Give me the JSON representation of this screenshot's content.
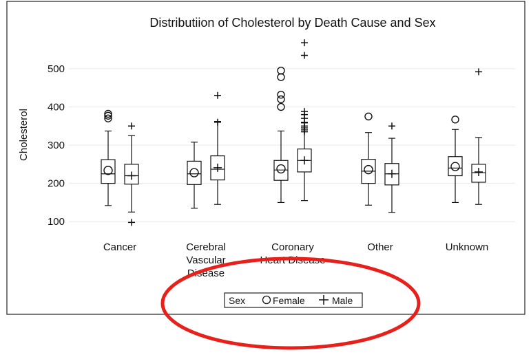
{
  "chart_data": {
    "type": "box",
    "title": "Distributiion of Cholesterol by Death Cause and Sex",
    "ylabel": "Cholesterol",
    "xlabel": "",
    "ylim": [
      68,
      605
    ],
    "yticks": [
      100,
      200,
      300,
      400,
      500
    ],
    "grid": true,
    "categories": [
      {
        "label_lines": [
          "Cancer"
        ]
      },
      {
        "label_lines": [
          "Cerebral",
          "Vascular",
          "Disease"
        ]
      },
      {
        "label_lines": [
          "Coronary",
          "Heart Disease"
        ]
      },
      {
        "label_lines": [
          "Other"
        ]
      },
      {
        "label_lines": [
          "Unknown"
        ]
      }
    ],
    "series": [
      {
        "name": "Female",
        "marker": "circle",
        "boxes": [
          {
            "whisker_low": 142,
            "q1": 200,
            "median": 225,
            "q3": 262,
            "whisker_high": 337,
            "mean": 234,
            "outliers": [
              370,
              377,
              382
            ]
          },
          {
            "whisker_low": 135,
            "q1": 197,
            "median": 225,
            "q3": 258,
            "whisker_high": 308,
            "mean": 228,
            "outliers": []
          },
          {
            "whisker_low": 150,
            "q1": 208,
            "median": 235,
            "q3": 260,
            "whisker_high": 337,
            "mean": 238,
            "outliers": []
          },
          {
            "whisker_low": 143,
            "q1": 200,
            "median": 232,
            "q3": 263,
            "whisker_high": 333,
            "mean": 236,
            "outliers": [
              375
            ]
          },
          {
            "whisker_low": 150,
            "q1": 220,
            "median": 240,
            "q3": 270,
            "whisker_high": 341,
            "mean": 244,
            "outliers": [
              367
            ]
          }
        ]
      },
      {
        "name": "Male",
        "marker": "plus",
        "boxes": [
          {
            "whisker_low": 125,
            "q1": 198,
            "median": 220,
            "q3": 250,
            "whisker_high": 325,
            "mean": 220,
            "outliers": [
              98,
              350
            ]
          },
          {
            "whisker_low": 145,
            "q1": 209,
            "median": 237,
            "q3": 272,
            "whisker_high": 362,
            "mean": 241,
            "outliers": []
          },
          {
            "whisker_low": 155,
            "q1": 230,
            "median": 260,
            "q3": 290,
            "whisker_high": 358,
            "mean": 260,
            "outliers": []
          },
          {
            "whisker_low": 124,
            "q1": 196,
            "median": 225,
            "q3": 252,
            "whisker_high": 318,
            "mean": 225,
            "outliers": [
              350
            ]
          },
          {
            "whisker_low": 145,
            "q1": 203,
            "median": 228,
            "q3": 250,
            "whisker_high": 320,
            "mean": 230,
            "outliers": [
              492
            ]
          }
        ]
      }
    ],
    "extra_outliers": [
      {
        "category": 1,
        "series": "Male",
        "values": [
          360,
          430
        ]
      },
      {
        "category": 2,
        "series": "Male",
        "values": [
          335,
          340,
          345,
          350,
          360,
          370,
          380,
          388,
          535,
          568
        ]
      },
      {
        "category": 2,
        "series": "Female",
        "values": [
          400,
          420,
          432,
          478,
          495
        ]
      }
    ],
    "legend": {
      "title": "Sex",
      "position": "bottom-center",
      "entries": [
        {
          "label": "Female",
          "marker": "circle"
        },
        {
          "label": "Male",
          "marker": "plus"
        }
      ]
    },
    "annotation_color": "#e8201c"
  }
}
